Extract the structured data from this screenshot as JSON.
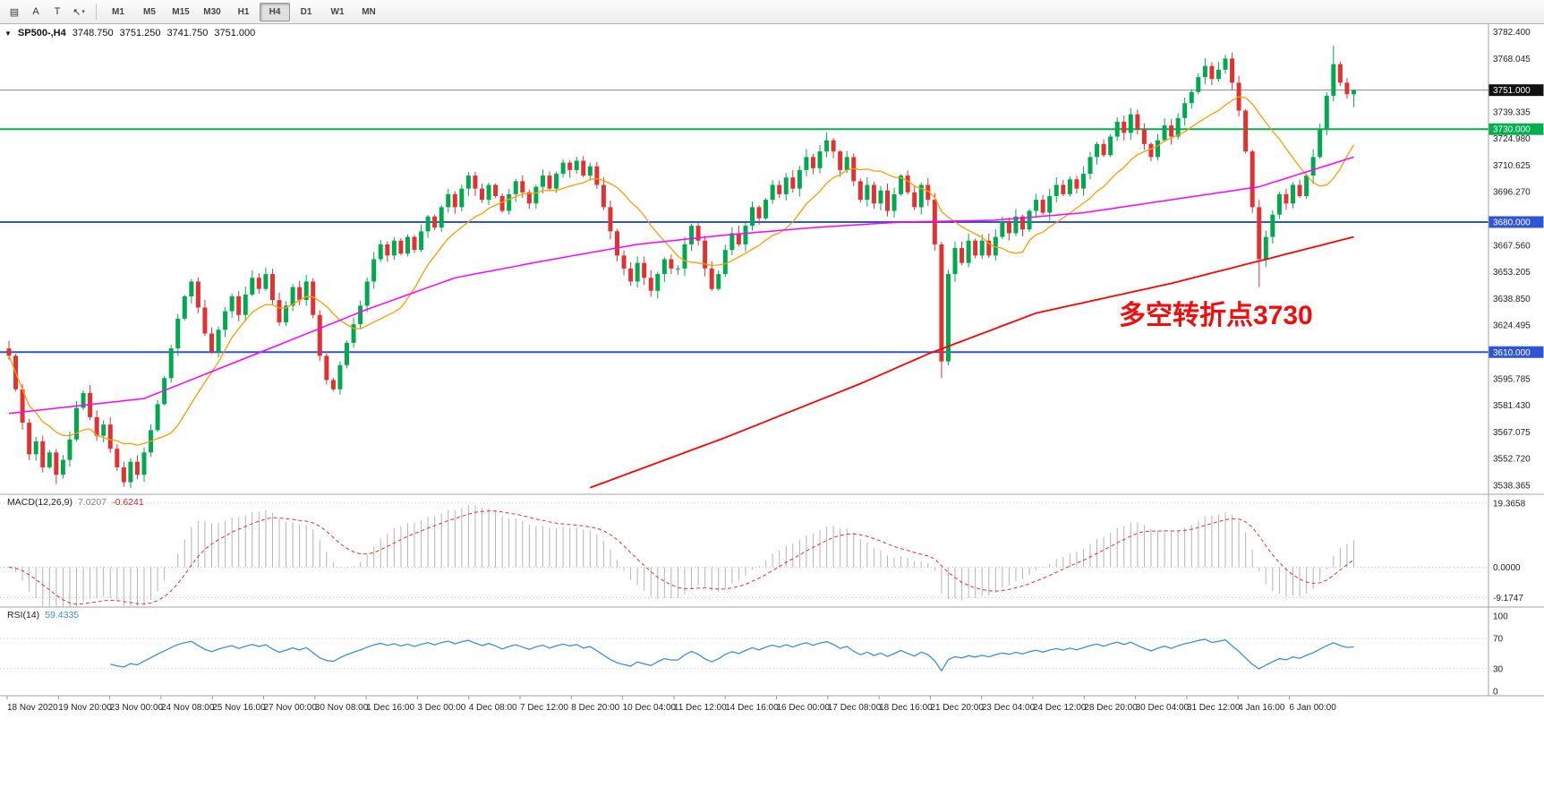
{
  "toolbar": {
    "tools": [
      {
        "name": "indicator-list-icon",
        "glyph": "▤"
      },
      {
        "name": "text-label-tool",
        "glyph": "A"
      },
      {
        "name": "text-tool",
        "glyph": "T"
      },
      {
        "name": "draw-tools",
        "glyph": "↖",
        "caret": "▾"
      }
    ],
    "timeframes": [
      {
        "label": "M1"
      },
      {
        "label": "M5"
      },
      {
        "label": "M15"
      },
      {
        "label": "M30"
      },
      {
        "label": "H1"
      },
      {
        "label": "H4",
        "active": true
      },
      {
        "label": "D1"
      },
      {
        "label": "W1"
      },
      {
        "label": "MN"
      }
    ]
  },
  "chart": {
    "symbol": "SP500-,H4",
    "open": "3748.750",
    "high": "3751.250",
    "low": "3741.750",
    "close": "3751.000",
    "annotation": {
      "text": "多空转折点3730",
      "color": "#f20d0d"
    },
    "current_price": 3751.0,
    "current_price_label": "3751.000",
    "hlines": [
      {
        "price": 3730.0,
        "label": "3730.000",
        "color": "#00b050"
      },
      {
        "price": 3680.0,
        "label": "3680.000",
        "color": "#2f55d4"
      },
      {
        "price": 3610.0,
        "label": "3610.000",
        "color": "#2f55d4"
      }
    ],
    "price_axis_labels": [
      "3782.400",
      "3768.045",
      "3739.335",
      "3724.980",
      "3710.625",
      "3696.270",
      "3667.560",
      "3653.205",
      "3638.850",
      "3624.495",
      "3595.785",
      "3581.430",
      "3567.075",
      "3552.720",
      "3538.365"
    ]
  },
  "chart_data": {
    "type": "candlestick",
    "symbol": "SP500-",
    "timeframe": "H4",
    "y_range": [
      3533.5,
      3786.5
    ],
    "first_open": 3612,
    "closes": [
      3608,
      3590,
      3572,
      3555,
      3562,
      3548,
      3556,
      3544,
      3552,
      3563,
      3580,
      3588,
      3575,
      3565,
      3571,
      3558,
      3548,
      3540,
      3551,
      3544,
      3556,
      3568,
      3582,
      3596,
      3612,
      3628,
      3640,
      3648,
      3634,
      3620,
      3610,
      3622,
      3632,
      3640,
      3630,
      3641,
      3650,
      3644,
      3652,
      3638,
      3626,
      3635,
      3645,
      3638,
      3648,
      3630,
      3608,
      3595,
      3590,
      3603,
      3615,
      3625,
      3635,
      3648,
      3660,
      3668,
      3662,
      3670,
      3663,
      3672,
      3665,
      3675,
      3683,
      3677,
      3688,
      3695,
      3688,
      3698,
      3705,
      3698,
      3692,
      3700,
      3694,
      3686,
      3695,
      3702,
      3696,
      3690,
      3699,
      3705,
      3698,
      3706,
      3712,
      3708,
      3713,
      3705,
      3710,
      3700,
      3688,
      3675,
      3662,
      3655,
      3648,
      3658,
      3650,
      3643,
      3652,
      3660,
      3655,
      3655,
      3668,
      3678,
      3670,
      3655,
      3644,
      3652,
      3665,
      3674,
      3668,
      3678,
      3688,
      3682,
      3692,
      3700,
      3695,
      3704,
      3698,
      3708,
      3715,
      3709,
      3718,
      3724,
      3718,
      3708,
      3715,
      3702,
      3692,
      3700,
      3690,
      3697,
      3686,
      3695,
      3705,
      3696,
      3688,
      3700,
      3692,
      3668,
      3605,
      3652,
      3666,
      3658,
      3670,
      3662,
      3670,
      3662,
      3672,
      3680,
      3674,
      3683,
      3676,
      3686,
      3692,
      3685,
      3694,
      3700,
      3695,
      3703,
      3698,
      3706,
      3715,
      3722,
      3716,
      3726,
      3734,
      3728,
      3738,
      3730,
      3722,
      3715,
      3724,
      3732,
      3726,
      3736,
      3744,
      3750,
      3758,
      3764,
      3757,
      3762,
      3768,
      3755,
      3740,
      3718,
      3688,
      3660,
      3672,
      3684,
      3695,
      3690,
      3700,
      3694,
      3705,
      3715,
      3730,
      3748,
      3765,
      3755,
      3748.8,
      3751
    ],
    "wick_overrides": {
      "7": {
        "low": 3539
      },
      "17": {
        "low": 3537.5
      },
      "138": {
        "low": 3596
      },
      "180": {
        "high": 3770
      },
      "185": {
        "low": 3645
      },
      "196": {
        "high": 3775
      },
      "199": {
        "open": 3748.75,
        "high": 3751.25,
        "low": 3741.75,
        "close": 3751.0
      }
    },
    "ma_fast_period": 13,
    "ma_mid_anchors": [
      [
        0,
        3577
      ],
      [
        20,
        3585
      ],
      [
        40,
        3614
      ],
      [
        53,
        3633
      ],
      [
        66,
        3650
      ],
      [
        79,
        3659
      ],
      [
        93,
        3668
      ],
      [
        106,
        3673
      ],
      [
        119,
        3677
      ],
      [
        132,
        3680
      ],
      [
        146,
        3681
      ],
      [
        159,
        3685
      ],
      [
        172,
        3692
      ],
      [
        185,
        3699
      ],
      [
        199,
        3715
      ]
    ],
    "ma_slow_anchors": [
      [
        86,
        3537
      ],
      [
        106,
        3564
      ],
      [
        126,
        3593
      ],
      [
        136,
        3609
      ],
      [
        152,
        3631
      ],
      [
        172,
        3647
      ],
      [
        199,
        3672
      ]
    ],
    "indicators": {
      "macd": {
        "label": "MACD(12,26,9)",
        "value_main": "7.0207",
        "value_signal": "-0.6241",
        "axis": [
          "19.3658",
          "0.0000",
          "-9.1747"
        ],
        "levels": [
          19.3658,
          0,
          -9.1747
        ],
        "range": [
          -12,
          22
        ],
        "fast": 12,
        "slow": 26,
        "signal": 9
      },
      "rsi": {
        "label": "RSI(14)",
        "value": "59.4335",
        "axis": [
          "100",
          "70",
          "30",
          "0"
        ],
        "levels": [
          70,
          30
        ],
        "range": [
          0,
          100
        ],
        "period": 14
      }
    },
    "time_labels": [
      "18 Nov 2020",
      "19 Nov 20:00",
      "23 Nov 00:00",
      "24 Nov 08:00",
      "25 Nov 16:00",
      "27 Nov 00:00",
      "30 Nov 08:00",
      "1 Dec 16:00",
      "3 Dec 00:00",
      "4 Dec 08:00",
      "7 Dec 12:00",
      "8 Dec 20:00",
      "10 Dec 04:00",
      "11 Dec 12:00",
      "14 Dec 16:00",
      "16 Dec 00:00",
      "17 Dec 08:00",
      "18 Dec 16:00",
      "21 Dec 20:00",
      "23 Dec 04:00",
      "24 Dec 12:00",
      "28 Dec 20:00",
      "30 Dec 04:00",
      "31 Dec 12:00",
      "4 Jan 16:00",
      "6 Jan 00:00"
    ]
  },
  "colors": {
    "up": "#00a94f",
    "down": "#e03232",
    "ma_fast": "#ff9c00",
    "ma_mid": "#ff00ff",
    "ma_slow": "#ff0000",
    "macd_hist": "#b4b4b4",
    "macd_signal": "#e03232",
    "rsi_line": "#3f8fd2",
    "price_tag_bg": "#111111",
    "separator": "#a0a0a0",
    "axis_text": "#222222"
  }
}
